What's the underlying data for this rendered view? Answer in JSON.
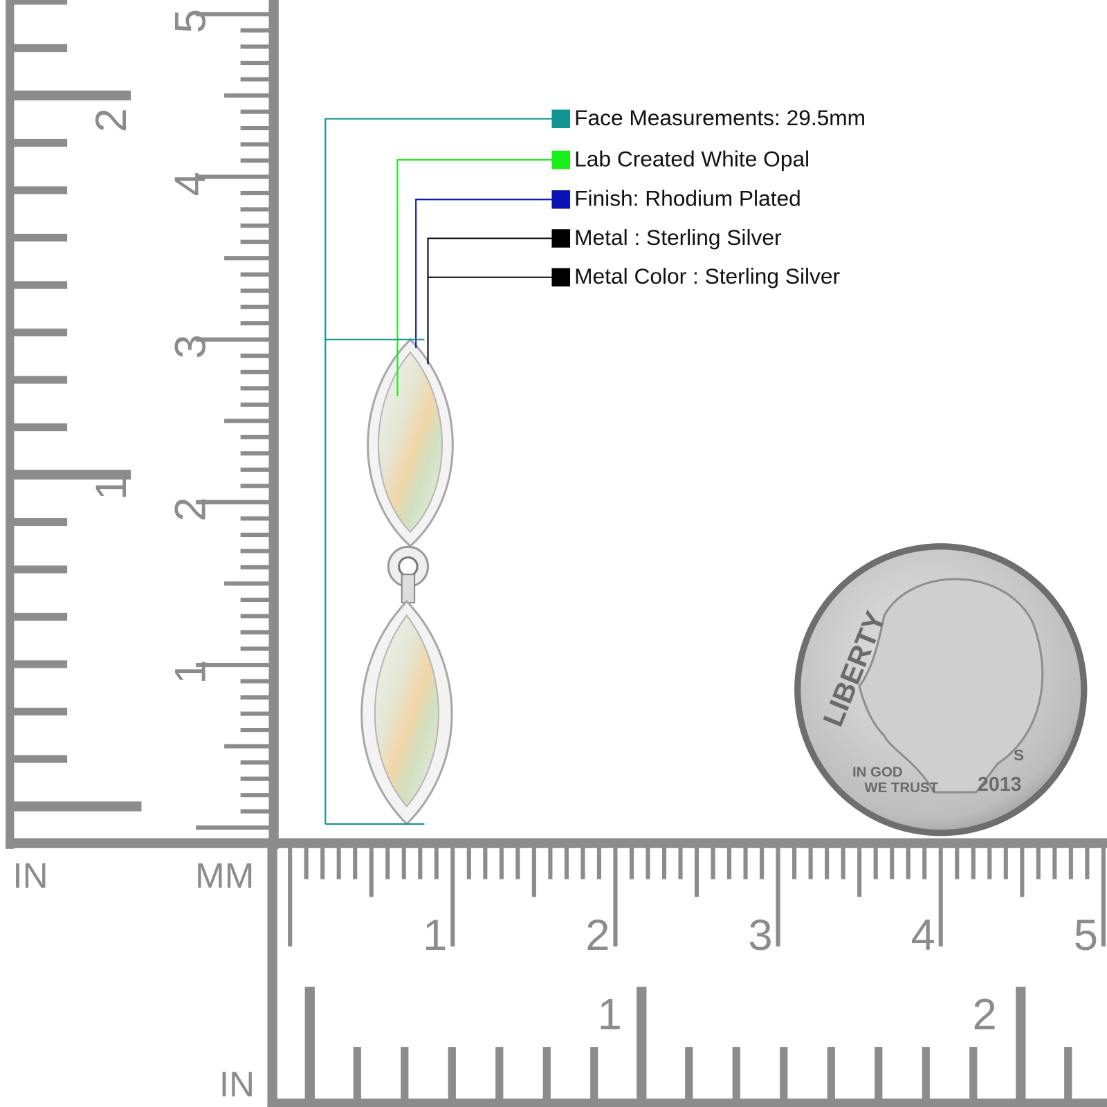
{
  "specs": [
    {
      "label": "Face Measurements: 29.5mm",
      "color": "#139494"
    },
    {
      "label": "Lab Created White Opal",
      "color": "#19f019"
    },
    {
      "label": "Finish: Rhodium Plated",
      "color": "#0a14b4"
    },
    {
      "label": "Metal : Sterling Silver",
      "color": "#000000"
    },
    {
      "label": "Metal Color : Sterling Silver",
      "color": "#000000"
    }
  ],
  "rulers": {
    "left": {
      "mm_numbers": [
        "1",
        "2",
        "3",
        "4",
        "5"
      ],
      "in_numbers": [
        "1",
        "2"
      ]
    },
    "bottom": {
      "mm_numbers": [
        "1",
        "2",
        "3",
        "4",
        "5"
      ],
      "in_numbers": [
        "1",
        "2"
      ]
    },
    "unit_labels": [
      "IN",
      "MM",
      "IN"
    ]
  },
  "coin": {
    "legend": "LIBERTY",
    "motto_top": "IN GOD",
    "motto_bottom": "WE TRUST",
    "year": "2013",
    "mint_mark": "S"
  }
}
